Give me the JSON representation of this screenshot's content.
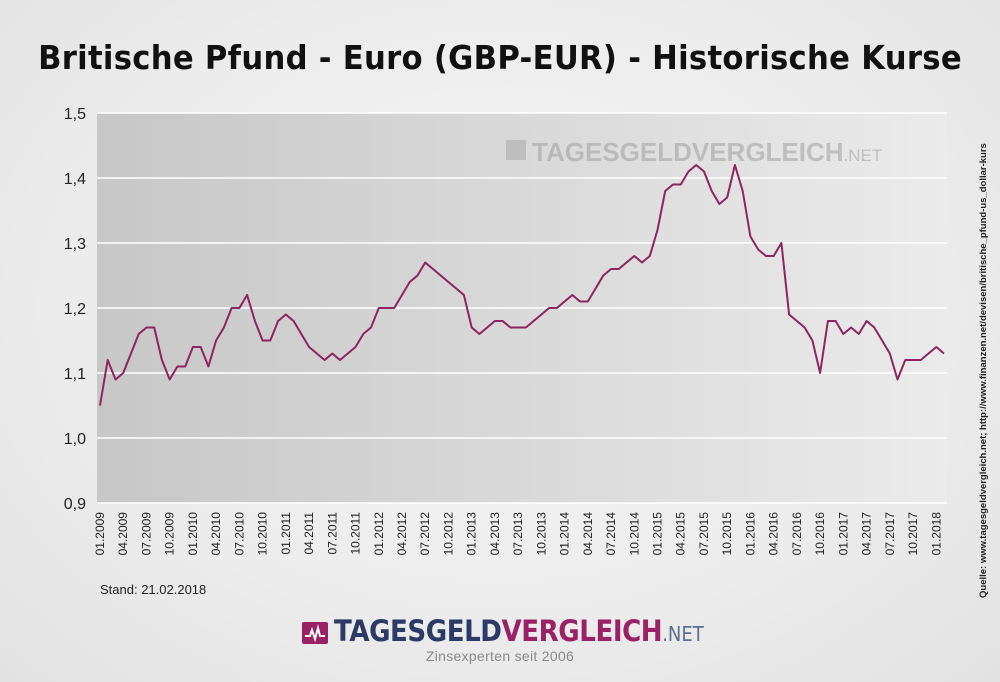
{
  "page": {
    "title": "Britische Pfund - Euro (GBP-EUR) - Historische Kurse",
    "stand": "Stand: 21.02.2018",
    "source": "Quelle: www.tagesgeldvergleich.net; http://www.finanzen.net/devisen/britische_pfund-us_dollar-kurs",
    "watermark": {
      "part1": "TAGESGELD",
      "part2": "VERGLEICH",
      "part3": ".NET"
    },
    "logo": {
      "part1": "TAGESGELD",
      "part2": "VERGLEICH",
      "part3": ".NET",
      "icon": "chart-pulse-icon"
    },
    "tagline": "Zinsexperten seit 2006"
  },
  "colors": {
    "line": "#8e2460",
    "brand_purple": "#9b2167",
    "brand_navy": "#2b3a67",
    "plot_bg_left": "#c7c7c7",
    "plot_bg_right": "#ebebeb",
    "grid": "#ffffff"
  },
  "chart_data": {
    "type": "line",
    "title": "Britische Pfund - Euro (GBP-EUR) - Historische Kurse",
    "xlabel": "",
    "ylabel": "",
    "ylim": [
      0.9,
      1.5
    ],
    "yticks": [
      0.9,
      1.0,
      1.1,
      1.2,
      1.3,
      1.4,
      1.5
    ],
    "ytick_labels": [
      "0,9",
      "1,0",
      "1,1",
      "1,2",
      "1,3",
      "1,4",
      "1,5"
    ],
    "x_tick_labels": [
      "01.2009",
      "04.2009",
      "07.2009",
      "10.2009",
      "01.2010",
      "04.2010",
      "07.2010",
      "10.2010",
      "01.2011",
      "04.2011",
      "07.2011",
      "10.2011",
      "01.2012",
      "04.2012",
      "07.2012",
      "10.2012",
      "01.2013",
      "04.2013",
      "07.2013",
      "10.2013",
      "01.2014",
      "04.2014",
      "07.2014",
      "10.2014",
      "01.2015",
      "04.2015",
      "07.2015",
      "10.2015",
      "01.2016",
      "04.2016",
      "07.2016",
      "10.2016",
      "01.2017",
      "04.2017",
      "07.2017",
      "10.2017",
      "01.2018"
    ],
    "grid": true,
    "series": [
      {
        "x": [
          "2009-01",
          "2009-02",
          "2009-03",
          "2009-04",
          "2009-05",
          "2009-06",
          "2009-07",
          "2009-08",
          "2009-09",
          "2009-10",
          "2009-11",
          "2009-12",
          "2010-01",
          "2010-02",
          "2010-03",
          "2010-04",
          "2010-05",
          "2010-06",
          "2010-07",
          "2010-08",
          "2010-09",
          "2010-10",
          "2010-11",
          "2010-12",
          "2011-01",
          "2011-02",
          "2011-03",
          "2011-04",
          "2011-05",
          "2011-06",
          "2011-07",
          "2011-08",
          "2011-09",
          "2011-10",
          "2011-11",
          "2011-12",
          "2012-01",
          "2012-02",
          "2012-03",
          "2012-04",
          "2012-05",
          "2012-06",
          "2012-07",
          "2012-08",
          "2012-09",
          "2012-10",
          "2012-11",
          "2012-12",
          "2013-01",
          "2013-02",
          "2013-03",
          "2013-04",
          "2013-05",
          "2013-06",
          "2013-07",
          "2013-08",
          "2013-09",
          "2013-10",
          "2013-11",
          "2013-12",
          "2014-01",
          "2014-02",
          "2014-03",
          "2014-04",
          "2014-05",
          "2014-06",
          "2014-07",
          "2014-08",
          "2014-09",
          "2014-10",
          "2014-11",
          "2014-12",
          "2015-01",
          "2015-02",
          "2015-03",
          "2015-04",
          "2015-05",
          "2015-06",
          "2015-07",
          "2015-08",
          "2015-09",
          "2015-10",
          "2015-11",
          "2015-12",
          "2016-01",
          "2016-02",
          "2016-03",
          "2016-04",
          "2016-05",
          "2016-06",
          "2016-07",
          "2016-08",
          "2016-09",
          "2016-10",
          "2016-11",
          "2016-12",
          "2017-01",
          "2017-02",
          "2017-03",
          "2017-04",
          "2017-05",
          "2017-06",
          "2017-07",
          "2017-08",
          "2017-09",
          "2017-10",
          "2017-11",
          "2017-12",
          "2018-01",
          "2018-02"
        ],
        "values": [
          1.05,
          1.12,
          1.09,
          1.1,
          1.13,
          1.16,
          1.17,
          1.17,
          1.12,
          1.09,
          1.11,
          1.11,
          1.14,
          1.14,
          1.11,
          1.15,
          1.17,
          1.2,
          1.2,
          1.22,
          1.18,
          1.15,
          1.15,
          1.18,
          1.19,
          1.18,
          1.16,
          1.14,
          1.13,
          1.12,
          1.13,
          1.12,
          1.13,
          1.14,
          1.16,
          1.17,
          1.2,
          1.2,
          1.2,
          1.22,
          1.24,
          1.25,
          1.27,
          1.26,
          1.25,
          1.24,
          1.23,
          1.22,
          1.17,
          1.16,
          1.17,
          1.18,
          1.18,
          1.17,
          1.17,
          1.17,
          1.18,
          1.19,
          1.2,
          1.2,
          1.21,
          1.22,
          1.21,
          1.21,
          1.23,
          1.25,
          1.26,
          1.26,
          1.27,
          1.28,
          1.27,
          1.28,
          1.32,
          1.38,
          1.39,
          1.39,
          1.41,
          1.42,
          1.41,
          1.38,
          1.36,
          1.37,
          1.42,
          1.38,
          1.31,
          1.29,
          1.28,
          1.28,
          1.3,
          1.19,
          1.18,
          1.17,
          1.15,
          1.1,
          1.18,
          1.18,
          1.16,
          1.17,
          1.16,
          1.18,
          1.17,
          1.15,
          1.13,
          1.09,
          1.12,
          1.12,
          1.12,
          1.13,
          1.14,
          1.13
        ]
      }
    ]
  }
}
